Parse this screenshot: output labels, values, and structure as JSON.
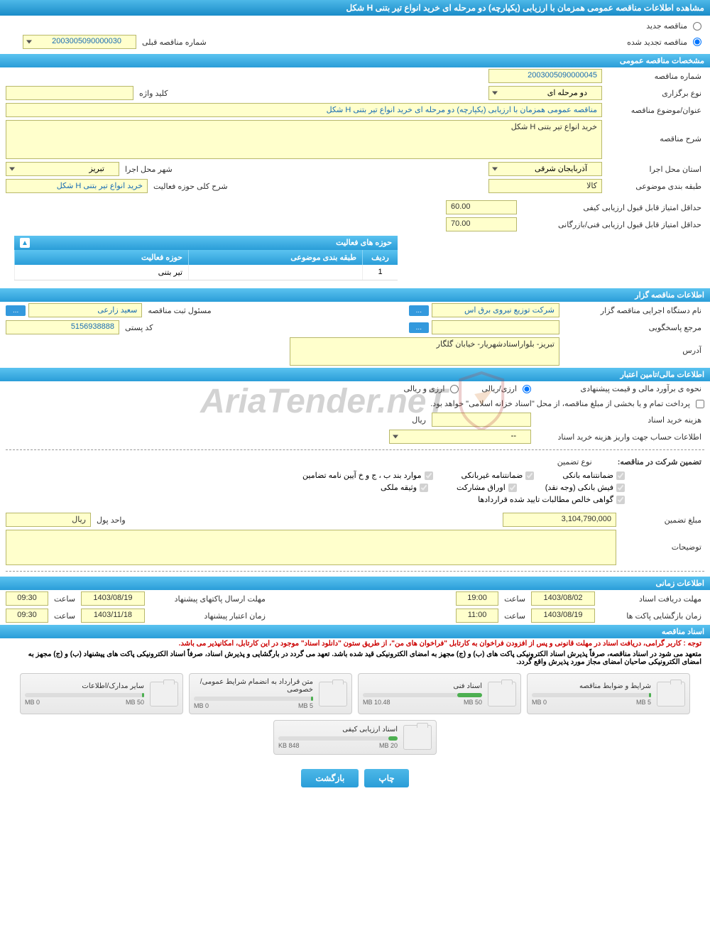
{
  "header": {
    "title": "مشاهده اطلاعات مناقصه عمومی همزمان با ارزیابی (یکپارچه) دو مرحله ای خرید انواع تیر بتنی H شکل"
  },
  "radio_options": {
    "new_tender": "مناقصه جدید",
    "renewed_tender": "مناقصه تجدید شده",
    "prev_number_label": "شماره مناقصه قبلی",
    "prev_number_value": "2003005090000030"
  },
  "section_headers": {
    "general_specs": "مشخصات مناقصه عمومی",
    "tenderer_info": "اطلاعات مناقصه گزار",
    "financial_info": "اطلاعات مالی/تامین اعتبار",
    "time_info": "اطلاعات زمانی",
    "tender_docs": "اسناد مناقصه",
    "activity_areas": "حوزه های فعالیت"
  },
  "general": {
    "tender_number_label": "شماره مناقصه",
    "tender_number": "2003005090000045",
    "type_label": "نوع برگزاری",
    "type_value": "دو مرحله ای",
    "keyword_label": "کلید واژه",
    "keyword_value": "",
    "subject_label": "عنوان/موضوع مناقصه",
    "subject_value": "مناقصه عمومی همزمان با ارزیابی (یکپارچه) دو مرحله ای خرید انواع تیر بتنی H شکل",
    "description_label": "شرح مناقصه",
    "description_value": "خرید انواع تیر بتنی H شکل",
    "province_label": "استان محل اجرا",
    "province_value": "آذربایجان شرقی",
    "city_label": "شهر محل اجرا",
    "city_value": "تبریز",
    "category_label": "طبقه بندی موضوعی",
    "category_value": "کالا",
    "activity_desc_label": "شرح کلی حوزه فعالیت",
    "activity_desc_value": "خرید انواع تیر بتنی H شکل",
    "min_quality_score_label": "حداقل امتیاز قابل قبول ارزیابی کیفی",
    "min_quality_score": "60.00",
    "min_tech_score_label": "حداقل امتیاز قابل قبول ارزیابی فنی/بازرگانی",
    "min_tech_score": "70.00"
  },
  "activity_table": {
    "col_row": "ردیف",
    "col_category": "طبقه بندی موضوعی",
    "col_activity": "حوزه فعالیت",
    "row1_num": "1",
    "row1_category": "",
    "row1_activity": "تیر بتنی"
  },
  "tenderer": {
    "org_label": "نام دستگاه اجرایی مناقصه گزار",
    "org_value": "شرکت توزیع نیروی برق اس",
    "responsible_label": "مسئول ثبت مناقصه",
    "responsible_value": "سعید زارعی",
    "reference_label": "مرجع پاسخگویی",
    "reference_value": "",
    "postal_label": "کد پستی",
    "postal_value": "5156938888",
    "address_label": "آدرس",
    "address_value": "تبریز- بلواراستادشهریار- خیابان گلگار",
    "more_btn": "..."
  },
  "financial": {
    "estimate_label": "نحوه ی برآورد مالی و قیمت پیشنهادی",
    "option_rial": "ارزی/ریالی",
    "option_currency": "ارزی و ریالی",
    "payment_note": "پرداخت تمام و یا بخشی از مبلغ مناقصه، از محل \"اسناد خزانه اسلامی\" خواهد بود.",
    "doc_cost_label": "هزینه خرید اسناد",
    "doc_cost_unit": "ریال",
    "account_label": "اطلاعات حساب جهت واریز هزینه خرید اسناد",
    "account_value": "--",
    "guarantee_label": "تضمین شرکت در مناقصه:",
    "guarantee_type_label": "نوع تضمین",
    "cb_bank_guarantee": "ضمانتنامه بانکی",
    "cb_nonbank_guarantee": "ضمانتنامه غیربانکی",
    "cb_bond": "موارد بند ب ، ج و خ آیین نامه تضامین",
    "cb_bank_receipt": "فیش بانکی (وجه نقد)",
    "cb_securities": "اوراق مشارکت",
    "cb_property": "وثیقه ملکی",
    "cb_receivables": "گواهی خالص مطالبات تایید شده قراردادها",
    "guarantee_amount_label": "مبلغ تضمین",
    "guarantee_amount": "3,104,790,000",
    "currency_unit_label": "واحد پول",
    "currency_unit": "ریال",
    "notes_label": "توضیحات",
    "notes_value": ""
  },
  "timing": {
    "doc_deadline_label": "مهلت دریافت اسناد",
    "doc_deadline_date": "1403/08/02",
    "time_label": "ساعت",
    "doc_deadline_time": "19:00",
    "send_deadline_label": "مهلت ارسال پاکتهای پیشنهاد",
    "send_deadline_date": "1403/08/19",
    "send_deadline_time": "09:30",
    "opening_label": "زمان بازگشایی پاکت ها",
    "opening_date": "1403/08/19",
    "opening_time": "11:00",
    "validity_label": "زمان اعتبار پیشنهاد",
    "validity_date": "1403/11/18",
    "validity_time": "09:30"
  },
  "docs": {
    "notice1": "توجه : کاربر گرامی، دریافت اسناد در مهلت قانونی و پس از افزودن فراخوان به کارتابل \"فراخوان های من\"، از طریق ستون \"دانلود اسناد\" موجود در این کارتابل، امکانپذیر می باشد.",
    "notice2": "متعهد می شود در اسناد مناقصه، صرفاً پذیرش اسناد الکترونیکی پاکت های (ب) و (ج) مجهز به امضای الکترونیکی قید شده باشد. تعهد می گردد در بارگشایی و پذیرش اسناد، صرفاً اسناد الکترونیکی پاکت های پیشنهاد (ب) و (ج) مجهز به امضای الکترونیکی صاحبان امضای مجاز مورد پذیرش واقع گردد."
  },
  "files": [
    {
      "title": "شرایط و ضوابط مناقصه",
      "used": "0 MB",
      "total": "5 MB",
      "progress": 2
    },
    {
      "title": "اسناد فنی",
      "used": "10.48 MB",
      "total": "50 MB",
      "progress": 21
    },
    {
      "title": "متن قرارداد به انضمام شرایط عمومی/خصوصی",
      "used": "0 MB",
      "total": "5 MB",
      "progress": 2
    },
    {
      "title": "سایر مدارک/اطلاعات",
      "used": "0 MB",
      "total": "50 MB",
      "progress": 2
    },
    {
      "title": "اسناد ارزیابی کیفی",
      "used": "848 KB",
      "total": "20 MB",
      "progress": 8
    }
  ],
  "buttons": {
    "print": "چاپ",
    "back": "بازگشت"
  },
  "watermark": "AriaTender.neT"
}
